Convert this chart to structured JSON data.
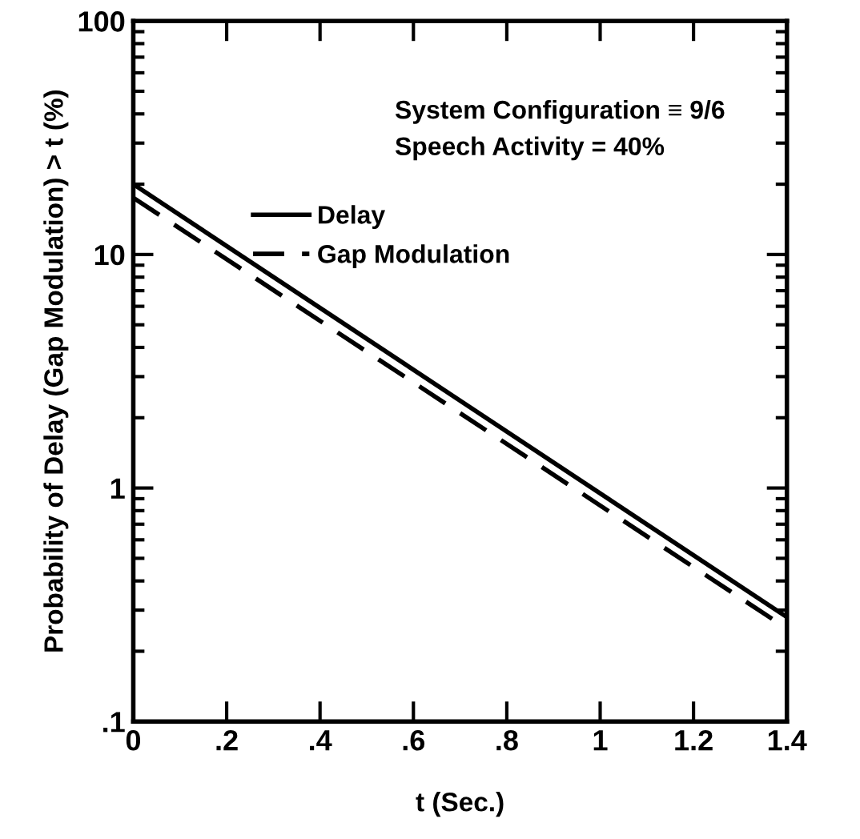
{
  "chart_data": {
    "type": "line",
    "xlabel": "t (Sec.)",
    "ylabel": "Probability of Delay (Gap Modulation) > t (%)",
    "x": [
      0,
      1.4
    ],
    "series": [
      {
        "name": "Delay",
        "color": "#000000",
        "values": [
          20,
          0.28
        ],
        "line_style": "solid"
      },
      {
        "name": "Gap Modulation",
        "color": "#000000",
        "values": [
          17.5,
          0.25
        ],
        "line_style": "dashed"
      }
    ],
    "log": "y",
    "xlim": [
      0,
      1.4
    ],
    "ylim": [
      0.1,
      100
    ],
    "xticks": [
      0,
      {
        "value": 0.2,
        "label": ".2"
      },
      {
        "value": 0.4,
        "label": ".4"
      },
      {
        "value": 0.6,
        "label": ".6"
      },
      {
        "value": 0.8,
        "label": ".8"
      },
      1,
      1.2,
      1.4
    ],
    "yticks": [
      {
        "value": 0.1,
        "label": ".1"
      },
      1,
      10,
      100
    ],
    "annotations": [
      "System Configuration ≡ 9/6",
      "Speech Activity = 40%"
    ],
    "legend": "top",
    "grid": false,
    "marker": "none"
  }
}
